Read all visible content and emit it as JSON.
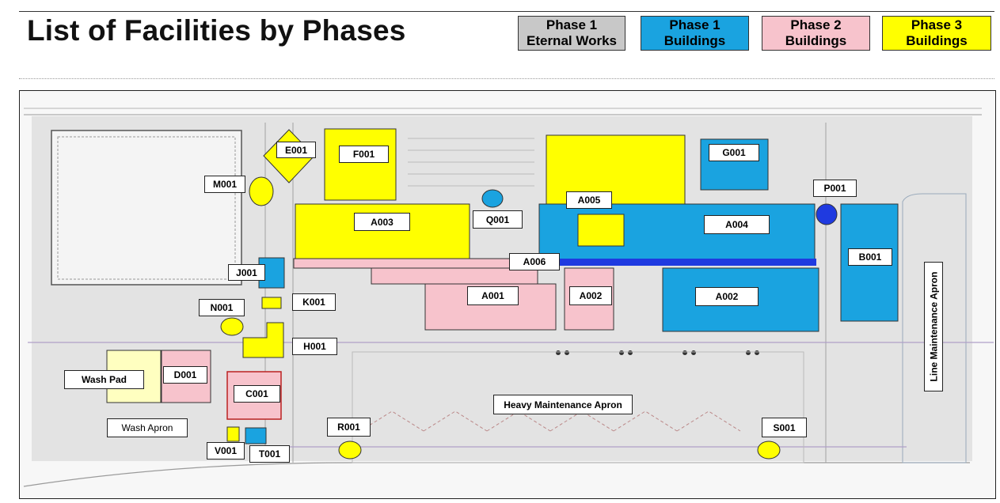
{
  "header": {
    "title": "List of Facilities by Phases"
  },
  "legend": [
    {
      "id": "phase1-external",
      "line1": "Phase 1",
      "line2": "Eternal Works",
      "color": "#c8c8c8"
    },
    {
      "id": "phase1-buildings",
      "line1": "Phase 1",
      "line2": "Buildings",
      "color": "#1aa3e0"
    },
    {
      "id": "phase2-buildings",
      "line1": "Phase 2",
      "line2": "Buildings",
      "color": "#f7c3cc"
    },
    {
      "id": "phase3-buildings",
      "line1": "Phase 3",
      "line2": "Buildings",
      "color": "#ffff00"
    }
  ],
  "colors": {
    "phase1_buildings": "#1aa3e0",
    "phase2_buildings": "#f7c3cc",
    "phase3_buildings": "#ffff00",
    "wash_pad": "#ffffc0",
    "strip_blue": "#1f3ae0"
  },
  "facilities": {
    "E001": "E001",
    "F001": "F001",
    "G001": "G001",
    "M001": "M001",
    "A005": "A005",
    "P001": "P001",
    "A003": "A003",
    "Q001": "Q001",
    "A004": "A004",
    "B001": "B001",
    "J001": "J001",
    "A006": "A006",
    "A001": "A001",
    "A002a": "A002",
    "A002b": "A002",
    "K001": "K001",
    "N001": "N001",
    "H001": "H001",
    "D001": "D001",
    "C001": "C001",
    "R001": "R001",
    "S001": "S001",
    "V001": "V001",
    "T001": "T001"
  },
  "areas": {
    "wash_pad": "Wash Pad",
    "wash_apron": "Wash Apron",
    "heavy_maintenance_apron": "Heavy Maintenance Apron",
    "line_maintenance_apron": "Line Maintenance Apron"
  }
}
